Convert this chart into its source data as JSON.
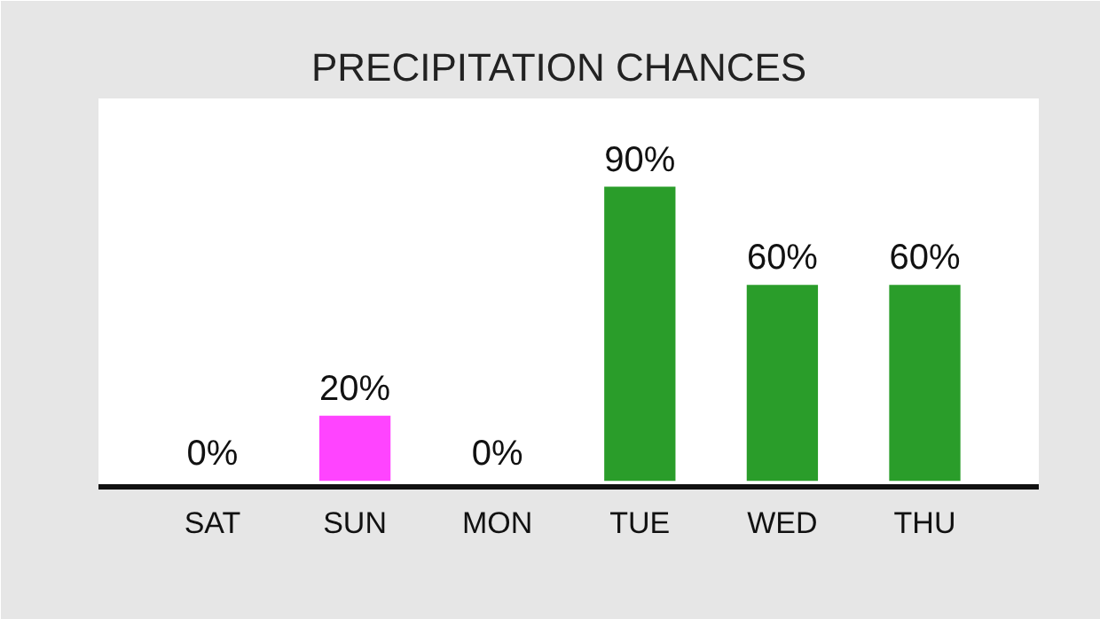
{
  "chart_data": {
    "type": "bar",
    "title": "PRECIPITATION CHANCES",
    "categories": [
      "SAT",
      "SUN",
      "MON",
      "TUE",
      "WED",
      "THU"
    ],
    "values": [
      0,
      20,
      0,
      90,
      60,
      60
    ],
    "colors": [
      "#2ca02c",
      "#ff44ff",
      "#2ca02c",
      "#2a9d2a",
      "#2a9d2a",
      "#2a9d2a"
    ],
    "value_labels": [
      "0%",
      "20%",
      "0%",
      "90%",
      "60%",
      "60%"
    ],
    "grid": false
  }
}
